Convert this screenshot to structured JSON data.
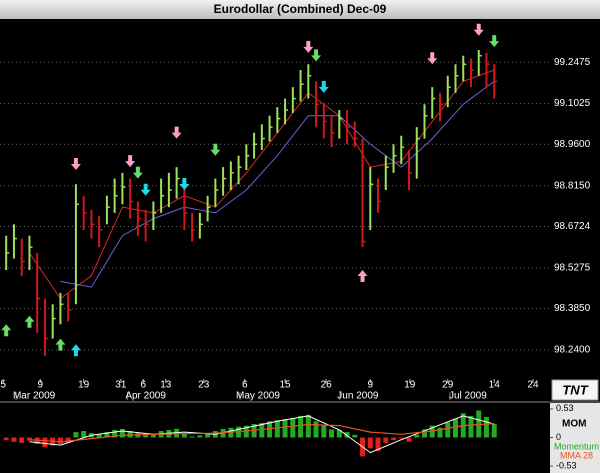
{
  "chart_data": [
    {
      "type": "hlc",
      "title": "Eurodollar (Combined) Dec-09",
      "logo": "TNT",
      "high": [
        98.64,
        98.68,
        98.63,
        98.64,
        98.58,
        98.42,
        98.4,
        98.44,
        98.44,
        98.82,
        98.78,
        98.73,
        98.71,
        98.78,
        98.84,
        98.86,
        98.84,
        98.76,
        98.73,
        98.76,
        98.84,
        98.86,
        98.88,
        98.82,
        98.72,
        98.72,
        98.78,
        98.84,
        98.88,
        98.9,
        98.92,
        98.96,
        99.0,
        99.03,
        99.06,
        99.09,
        99.12,
        99.16,
        99.22,
        99.24,
        99.18,
        99.1,
        99.06,
        99.08,
        99.08,
        99.04,
        98.98,
        98.88,
        98.84,
        98.92,
        98.96,
        98.99,
        98.94,
        99.02,
        99.1,
        99.16,
        99.14,
        99.2,
        99.24,
        99.27,
        99.26,
        99.29,
        99.28,
        99.24
      ],
      "low": [
        98.52,
        98.56,
        98.5,
        98.52,
        98.3,
        98.22,
        98.28,
        98.33,
        98.34,
        98.4,
        98.66,
        98.63,
        98.6,
        98.68,
        98.72,
        98.75,
        98.7,
        98.64,
        98.62,
        98.66,
        98.72,
        98.74,
        98.77,
        98.66,
        98.62,
        98.63,
        98.69,
        98.74,
        98.78,
        98.8,
        98.82,
        98.87,
        98.91,
        98.94,
        98.97,
        99.0,
        99.03,
        99.07,
        99.11,
        99.12,
        99.02,
        98.98,
        98.95,
        98.98,
        98.96,
        98.95,
        98.6,
        98.66,
        98.72,
        98.8,
        98.86,
        98.89,
        98.8,
        98.84,
        98.98,
        99.05,
        99.04,
        99.09,
        99.14,
        99.18,
        99.16,
        99.2,
        99.16,
        99.12
      ],
      "close": [
        98.58,
        98.63,
        98.55,
        98.6,
        98.42,
        98.28,
        98.35,
        98.4,
        98.38,
        98.75,
        98.72,
        98.68,
        98.66,
        98.74,
        98.78,
        98.81,
        98.76,
        98.7,
        98.68,
        98.72,
        98.78,
        98.8,
        98.84,
        98.72,
        98.66,
        98.68,
        98.74,
        98.8,
        98.84,
        98.86,
        98.88,
        98.92,
        98.96,
        98.98,
        99.02,
        99.05,
        99.08,
        99.12,
        99.17,
        99.2,
        99.1,
        99.04,
        99.0,
        99.05,
        99.02,
        98.98,
        98.62,
        98.82,
        98.76,
        98.88,
        98.92,
        98.95,
        98.86,
        98.98,
        99.06,
        99.12,
        99.1,
        99.16,
        99.2,
        99.24,
        99.22,
        99.27,
        99.24,
        99.18
      ],
      "up_color": "#9be35a",
      "down_color": "#d01818",
      "lines": [
        {
          "color": "#e02828",
          "x": [
            3,
            7,
            11,
            15,
            19,
            23,
            27,
            31,
            35,
            39,
            43,
            47,
            51,
            55,
            59,
            63
          ],
          "values": [
            98.58,
            98.42,
            98.5,
            98.74,
            98.72,
            98.78,
            98.74,
            98.86,
            99.0,
            99.14,
            99.06,
            98.88,
            98.9,
            99.04,
            99.18,
            99.22
          ]
        },
        {
          "color": "#6f5fd8",
          "x": [
            3,
            7,
            11,
            15,
            19,
            23,
            27,
            31,
            35,
            39,
            43,
            47,
            51,
            55,
            59,
            63
          ],
          "values": [
            null,
            98.48,
            98.46,
            98.64,
            98.7,
            98.74,
            98.72,
            98.8,
            98.92,
            99.06,
            99.06,
            98.96,
            98.88,
            98.98,
            99.1,
            99.18
          ]
        }
      ],
      "signals": [
        {
          "x": 9,
          "y": 98.87,
          "dir": "down",
          "color": "#ff9fc6"
        },
        {
          "x": 16,
          "y": 98.88,
          "dir": "down",
          "color": "#ff9fc6"
        },
        {
          "x": 22,
          "y": 98.98,
          "dir": "down",
          "color": "#ff9fc6"
        },
        {
          "x": 39,
          "y": 99.28,
          "dir": "down",
          "color": "#ff9fc6"
        },
        {
          "x": 55,
          "y": 99.24,
          "dir": "down",
          "color": "#ff9fc6"
        },
        {
          "x": 61,
          "y": 99.34,
          "dir": "down",
          "color": "#ff9fc6"
        },
        {
          "x": 17,
          "y": 98.84,
          "dir": "down",
          "color": "#66dd66"
        },
        {
          "x": 27,
          "y": 98.92,
          "dir": "down",
          "color": "#66dd66"
        },
        {
          "x": 40,
          "y": 99.25,
          "dir": "down",
          "color": "#66dd66"
        },
        {
          "x": 63,
          "y": 99.3,
          "dir": "down",
          "color": "#66dd66"
        },
        {
          "x": 0,
          "y": 98.33,
          "dir": "up",
          "color": "#66dd66"
        },
        {
          "x": 3,
          "y": 98.36,
          "dir": "up",
          "color": "#66dd66"
        },
        {
          "x": 7,
          "y": 98.28,
          "dir": "up",
          "color": "#66dd66"
        },
        {
          "x": 18,
          "y": 98.78,
          "dir": "down",
          "color": "#22d8e8"
        },
        {
          "x": 23,
          "y": 98.8,
          "dir": "down",
          "color": "#22d8e8"
        },
        {
          "x": 41,
          "y": 99.14,
          "dir": "down",
          "color": "#22d8e8"
        },
        {
          "x": 9,
          "y": 98.26,
          "dir": "up",
          "color": "#22d8e8"
        },
        {
          "x": 46,
          "y": 98.52,
          "dir": "up",
          "color": "#ff9fc6"
        }
      ],
      "xlim": [
        -0.8,
        70.2
      ],
      "xticks": [
        {
          "value": -0.4,
          "label": "5"
        },
        {
          "value": 4.4,
          "label": "9"
        },
        {
          "value": 10.0,
          "label": "19"
        },
        {
          "value": 14.8,
          "label": "31"
        },
        {
          "value": 17.7,
          "label": "6"
        },
        {
          "value": 20.6,
          "label": "13"
        },
        {
          "value": 25.5,
          "label": "23"
        },
        {
          "value": 30.8,
          "label": "6"
        },
        {
          "value": 36.0,
          "label": "15"
        },
        {
          "value": 41.3,
          "label": "26"
        },
        {
          "value": 47.0,
          "label": "9"
        },
        {
          "value": 52.1,
          "label": "19"
        },
        {
          "value": 57.0,
          "label": "29"
        },
        {
          "value": 63.0,
          "label": "14"
        },
        {
          "value": 68.0,
          "label": "24"
        }
      ],
      "month_labels": [
        {
          "value": 3.6,
          "label": "Mar 2009"
        },
        {
          "value": 18.0,
          "label": "Apr 2009"
        },
        {
          "value": 32.5,
          "label": "May 2009"
        },
        {
          "value": 45.4,
          "label": "Jun 2009"
        },
        {
          "value": 59.6,
          "label": "Jul 2009"
        }
      ],
      "ylim": [
        98.142,
        99.395
      ],
      "yticks": [
        99.2475,
        99.1025,
        {
          "value": 98.96,
          "label": "98.9600"
        },
        {
          "value": 98.815,
          "label": "98.8150"
        },
        98.6724,
        98.5275,
        {
          "value": 98.385,
          "label": "98.3850"
        },
        {
          "value": 98.24,
          "label": "98.2400"
        }
      ],
      "grid": true
    },
    {
      "type": "bar",
      "title": "MOM",
      "series": [
        {
          "name": "Momentum",
          "color": "#22aa22",
          "negative_color": "#e02020",
          "values": [
            -0.05,
            -0.08,
            -0.1,
            -0.06,
            -0.12,
            -0.18,
            -0.15,
            -0.12,
            -0.1,
            0.1,
            0.12,
            0.08,
            0.06,
            0.1,
            0.14,
            0.16,
            0.12,
            0.08,
            0.05,
            0.07,
            0.12,
            0.14,
            0.16,
            0.08,
            0.02,
            0.04,
            0.08,
            0.12,
            0.16,
            0.18,
            0.2,
            0.22,
            0.25,
            0.27,
            0.3,
            0.32,
            0.34,
            0.36,
            0.4,
            0.42,
            0.3,
            0.22,
            0.15,
            0.14,
            0.1,
            0.05,
            -0.35,
            -0.2,
            -0.25,
            -0.1,
            -0.05,
            -0.02,
            -0.08,
            0.05,
            0.15,
            0.22,
            0.18,
            0.28,
            0.35,
            0.45,
            0.4,
            0.5,
            0.38,
            0.25
          ]
        },
        {
          "name": "MMA 28",
          "color": "#e8541e",
          "x": [
            3,
            7,
            11,
            15,
            19,
            23,
            27,
            31,
            35,
            39,
            43,
            47,
            51,
            55,
            59,
            63
          ],
          "values": [
            -0.04,
            -0.08,
            -0.02,
            0.04,
            0.06,
            0.07,
            0.08,
            0.12,
            0.18,
            0.24,
            0.22,
            0.1,
            0.06,
            0.12,
            0.22,
            0.26
          ]
        }
      ],
      "lines": [
        {
          "color": "#ffffff",
          "x": [
            3,
            7,
            11,
            15,
            19,
            23,
            27,
            31,
            35,
            39,
            43,
            47,
            51,
            55,
            59,
            63
          ],
          "values": [
            -0.08,
            -0.14,
            0.04,
            0.12,
            0.06,
            0.1,
            0.06,
            0.18,
            0.3,
            0.4,
            0.14,
            -0.28,
            -0.04,
            0.18,
            0.4,
            0.25
          ]
        }
      ],
      "xlim": [
        -0.8,
        70.2
      ],
      "ylim": [
        -0.62,
        0.62
      ],
      "yticks": [
        0.53,
        0,
        -0.53
      ]
    }
  ]
}
